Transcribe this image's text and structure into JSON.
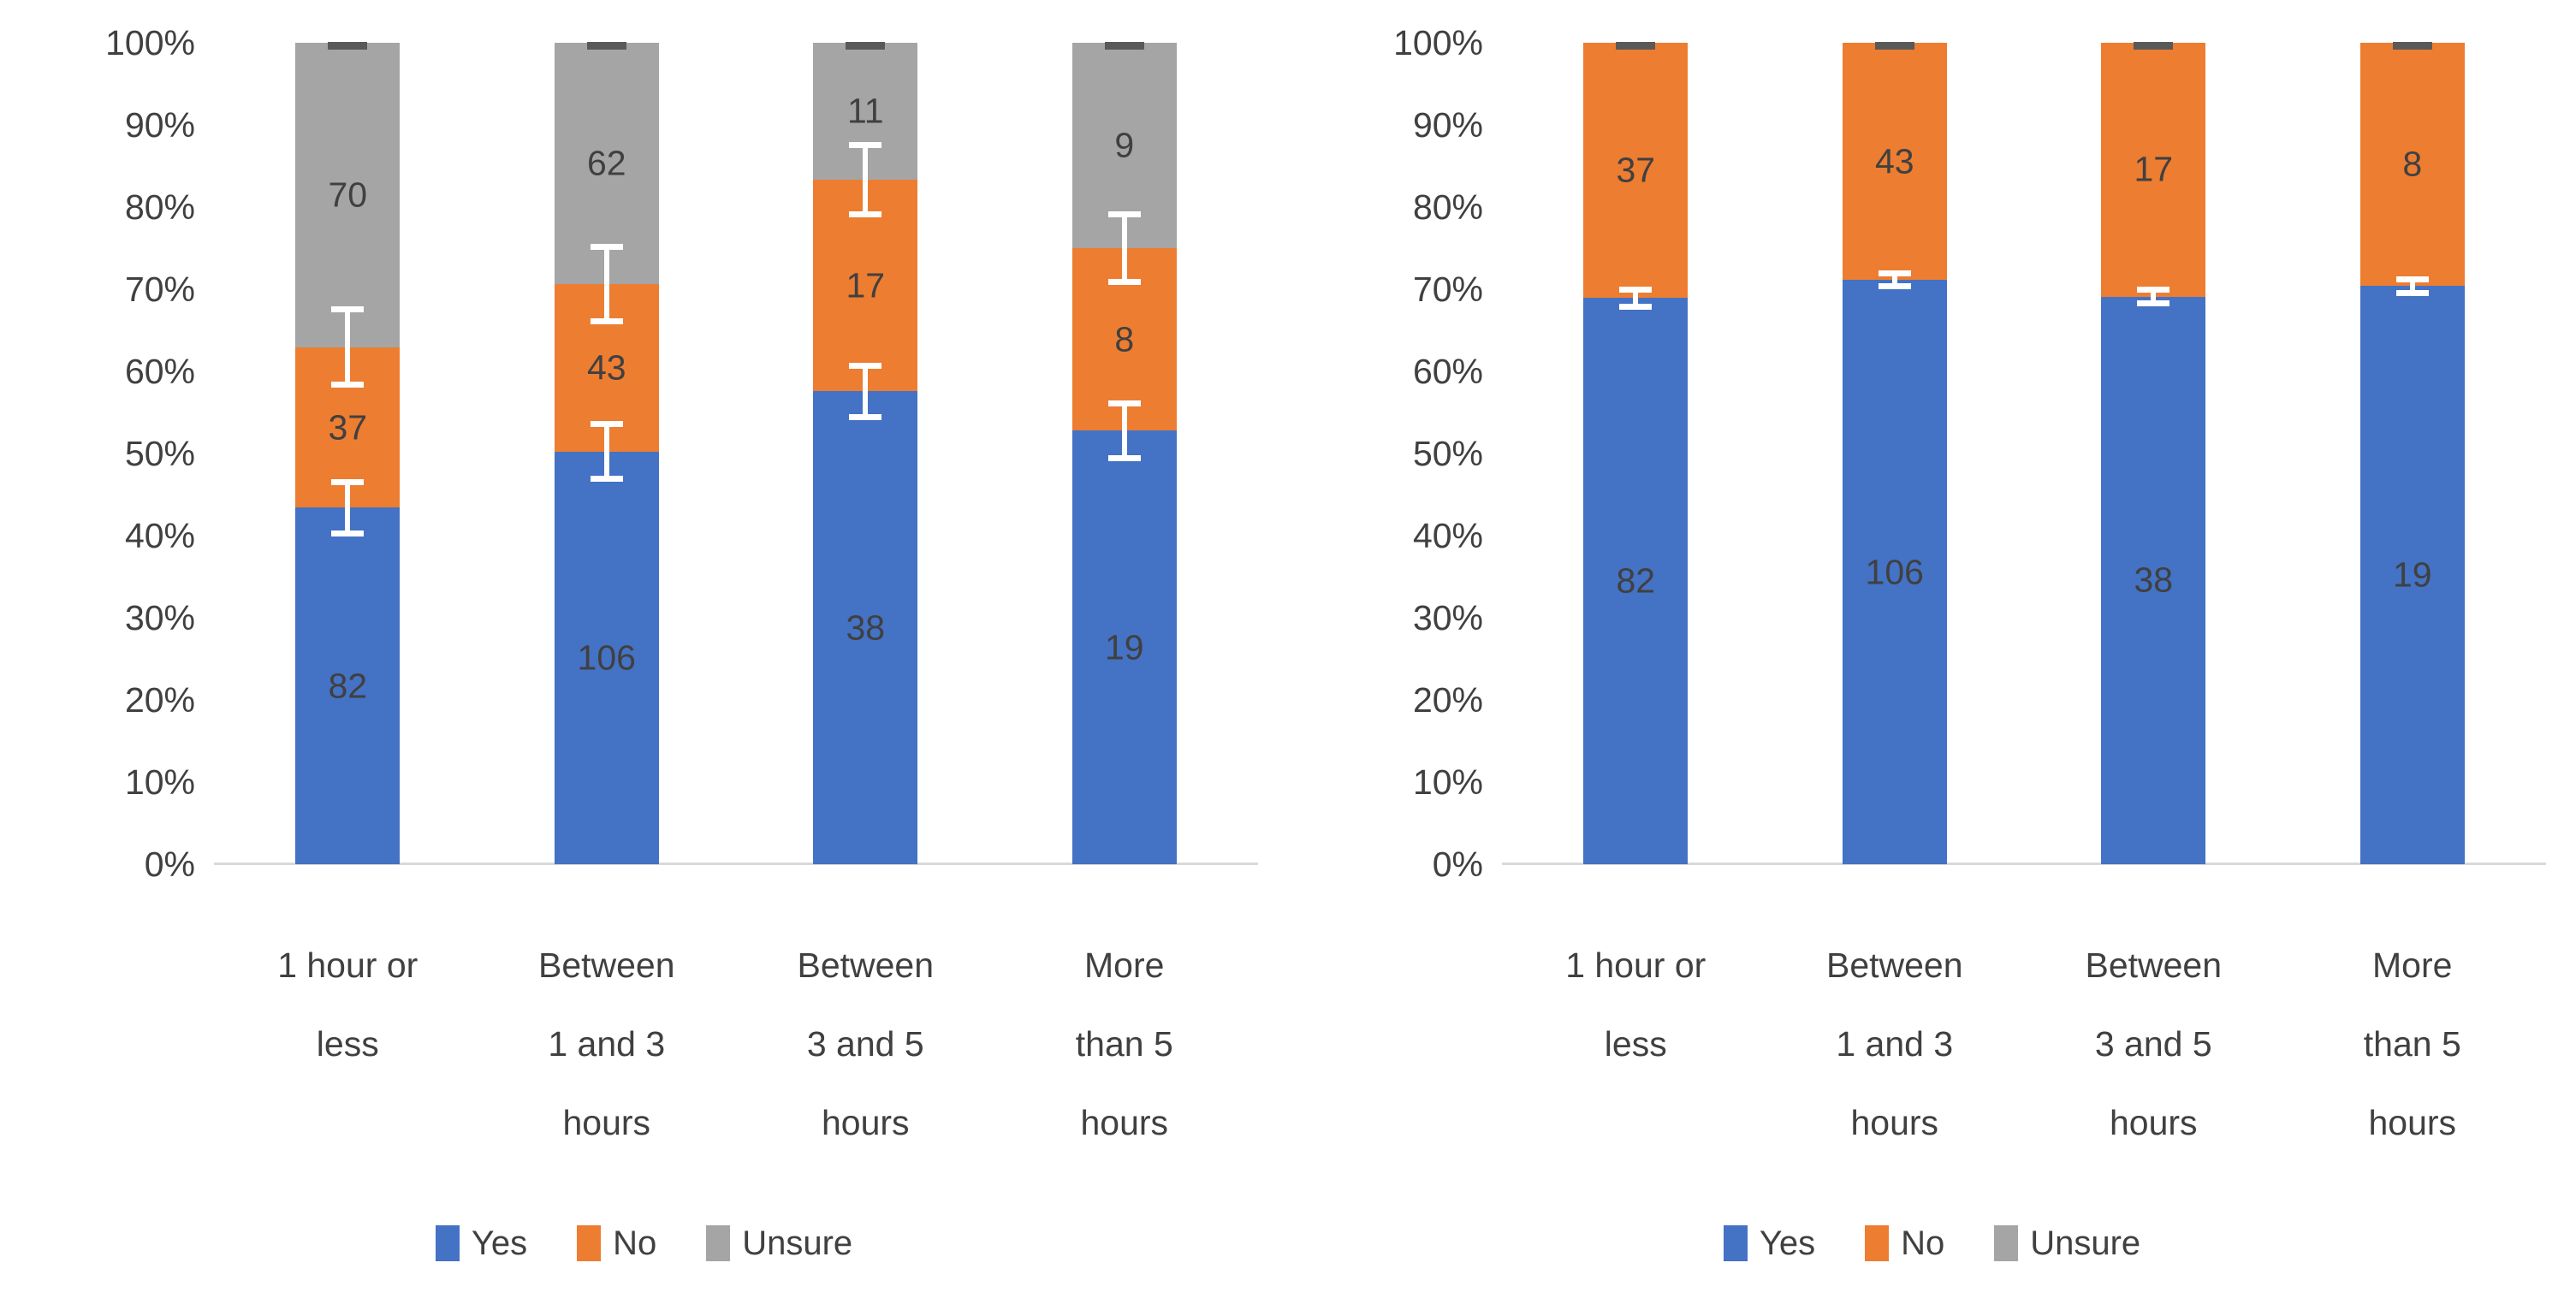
{
  "page": {
    "background": "#FFFFFF"
  },
  "colors": {
    "yes": "#4472C4",
    "no": "#ED7D31",
    "unsure": "#A5A5A5",
    "axis_line": "#D9D9D9",
    "text": "#404040",
    "error_white": "#FFFFFF",
    "error_dark": "#595959"
  },
  "legend": {
    "items": [
      {
        "label": "Yes",
        "color_key": "yes"
      },
      {
        "label": "No",
        "color_key": "no"
      },
      {
        "label": "Unsure",
        "color_key": "unsure"
      }
    ]
  },
  "chart_data": [
    {
      "type": "bar",
      "stacking": "percent",
      "title": "",
      "xlabel": "",
      "ylabel": "",
      "ylim": [
        0,
        100
      ],
      "grid": false,
      "legend_position": "bottom",
      "categories": [
        "1 hour or less",
        "Between 1 and 3 hours",
        "Between 3 and 5 hours",
        "More than 5 hours"
      ],
      "category_lines": [
        [
          "1 hour or",
          "less"
        ],
        [
          "Between",
          "1 and 3",
          "hours"
        ],
        [
          "Between",
          "3 and 5",
          "hours"
        ],
        [
          "More",
          "than 5",
          "hours"
        ]
      ],
      "yticks": [
        "0%",
        "10%",
        "20%",
        "30%",
        "40%",
        "50%",
        "60%",
        "70%",
        "80%",
        "90%",
        "100%"
      ],
      "series": [
        {
          "name": "Yes",
          "color_key": "yes",
          "values": [
            82,
            106,
            38,
            19
          ]
        },
        {
          "name": "No",
          "color_key": "no",
          "values": [
            37,
            43,
            17,
            8
          ]
        },
        {
          "name": "Unsure",
          "color_key": "unsure",
          "values": [
            70,
            62,
            11,
            9
          ]
        }
      ],
      "percent_stacks": [
        [
          43.4,
          19.6,
          37.0
        ],
        [
          50.2,
          20.4,
          29.4
        ],
        [
          57.6,
          25.8,
          16.7
        ],
        [
          52.8,
          22.2,
          25.0
        ]
      ],
      "error_bars": {
        "boundaries_after_series": [
          0,
          1
        ],
        "deltas": [
          [
            3.2,
            4.6
          ],
          [
            3.4,
            4.6
          ],
          [
            3.2,
            4.3
          ],
          [
            3.4,
            4.2
          ]
        ],
        "top_cap_at": 100
      }
    },
    {
      "type": "bar",
      "stacking": "percent",
      "title": "",
      "xlabel": "",
      "ylabel": "",
      "ylim": [
        0,
        100
      ],
      "grid": false,
      "legend_position": "bottom",
      "categories": [
        "1 hour or less",
        "Between 1 and 3 hours",
        "Between 3 and 5 hours",
        "More than 5 hours"
      ],
      "category_lines": [
        [
          "1 hour or",
          "less"
        ],
        [
          "Between",
          "1 and 3",
          "hours"
        ],
        [
          "Between",
          "3 and 5",
          "hours"
        ],
        [
          "More",
          "than 5",
          "hours"
        ]
      ],
      "yticks": [
        "0%",
        "10%",
        "20%",
        "30%",
        "40%",
        "50%",
        "60%",
        "70%",
        "80%",
        "90%",
        "100%"
      ],
      "series": [
        {
          "name": "Yes",
          "color_key": "yes",
          "values": [
            82,
            106,
            38,
            19
          ]
        },
        {
          "name": "No",
          "color_key": "no",
          "values": [
            37,
            43,
            17,
            8
          ]
        },
        {
          "name": "Unsure",
          "color_key": "unsure",
          "values": [
            0,
            0,
            0,
            0
          ]
        }
      ],
      "percent_stacks": [
        [
          68.9,
          31.1,
          0.0
        ],
        [
          71.1,
          28.9,
          0.0
        ],
        [
          69.1,
          30.9,
          0.0
        ],
        [
          70.4,
          29.6,
          0.0
        ]
      ],
      "error_bars": {
        "boundaries_after_series": [
          0
        ],
        "deltas": [
          [
            1.1
          ],
          [
            0.8
          ],
          [
            0.9
          ],
          [
            0.9
          ]
        ],
        "top_cap_at": 100
      }
    }
  ]
}
